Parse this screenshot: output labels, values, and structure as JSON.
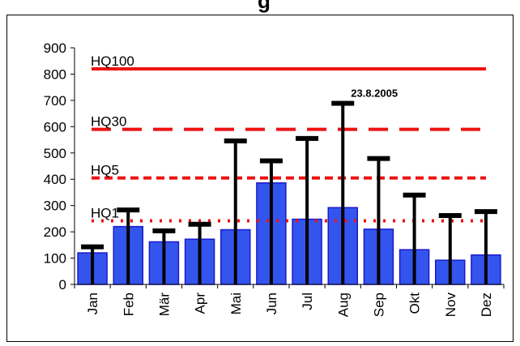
{
  "header": {
    "fragment_left": "",
    "fragment_mid": "g",
    "fragment_right": ""
  },
  "chart_data": {
    "type": "bar",
    "categories": [
      "Jan",
      "Feb",
      "Mär",
      "Apr",
      "Mai",
      "Jun",
      "Jul",
      "Aug",
      "Sep",
      "Okt",
      "Nov",
      "Dez"
    ],
    "values": [
      120,
      220,
      162,
      172,
      208,
      386,
      248,
      292,
      210,
      132,
      92,
      112
    ],
    "max_values": [
      143,
      283,
      204,
      229,
      546,
      470,
      555,
      689,
      479,
      340,
      262,
      277
    ],
    "ylim": [
      0,
      900
    ],
    "yticks": [
      0,
      100,
      200,
      300,
      400,
      500,
      600,
      700,
      800,
      900
    ],
    "grid": false,
    "bar_color": "#3355ee",
    "reference_lines": [
      {
        "label": "HQ100",
        "value": 820,
        "style": "solid",
        "color": "#ee1111"
      },
      {
        "label": "HQ30",
        "value": 590,
        "style": "dashed",
        "color": "#ee1111"
      },
      {
        "label": "HQ5",
        "value": 405,
        "style": "short-dashed",
        "color": "#ee1111"
      },
      {
        "label": "HQ1",
        "value": 242,
        "style": "dotted",
        "color": "#ee1111"
      }
    ],
    "annotations": [
      {
        "text": "23.8.2005",
        "category": "Aug"
      }
    ]
  }
}
